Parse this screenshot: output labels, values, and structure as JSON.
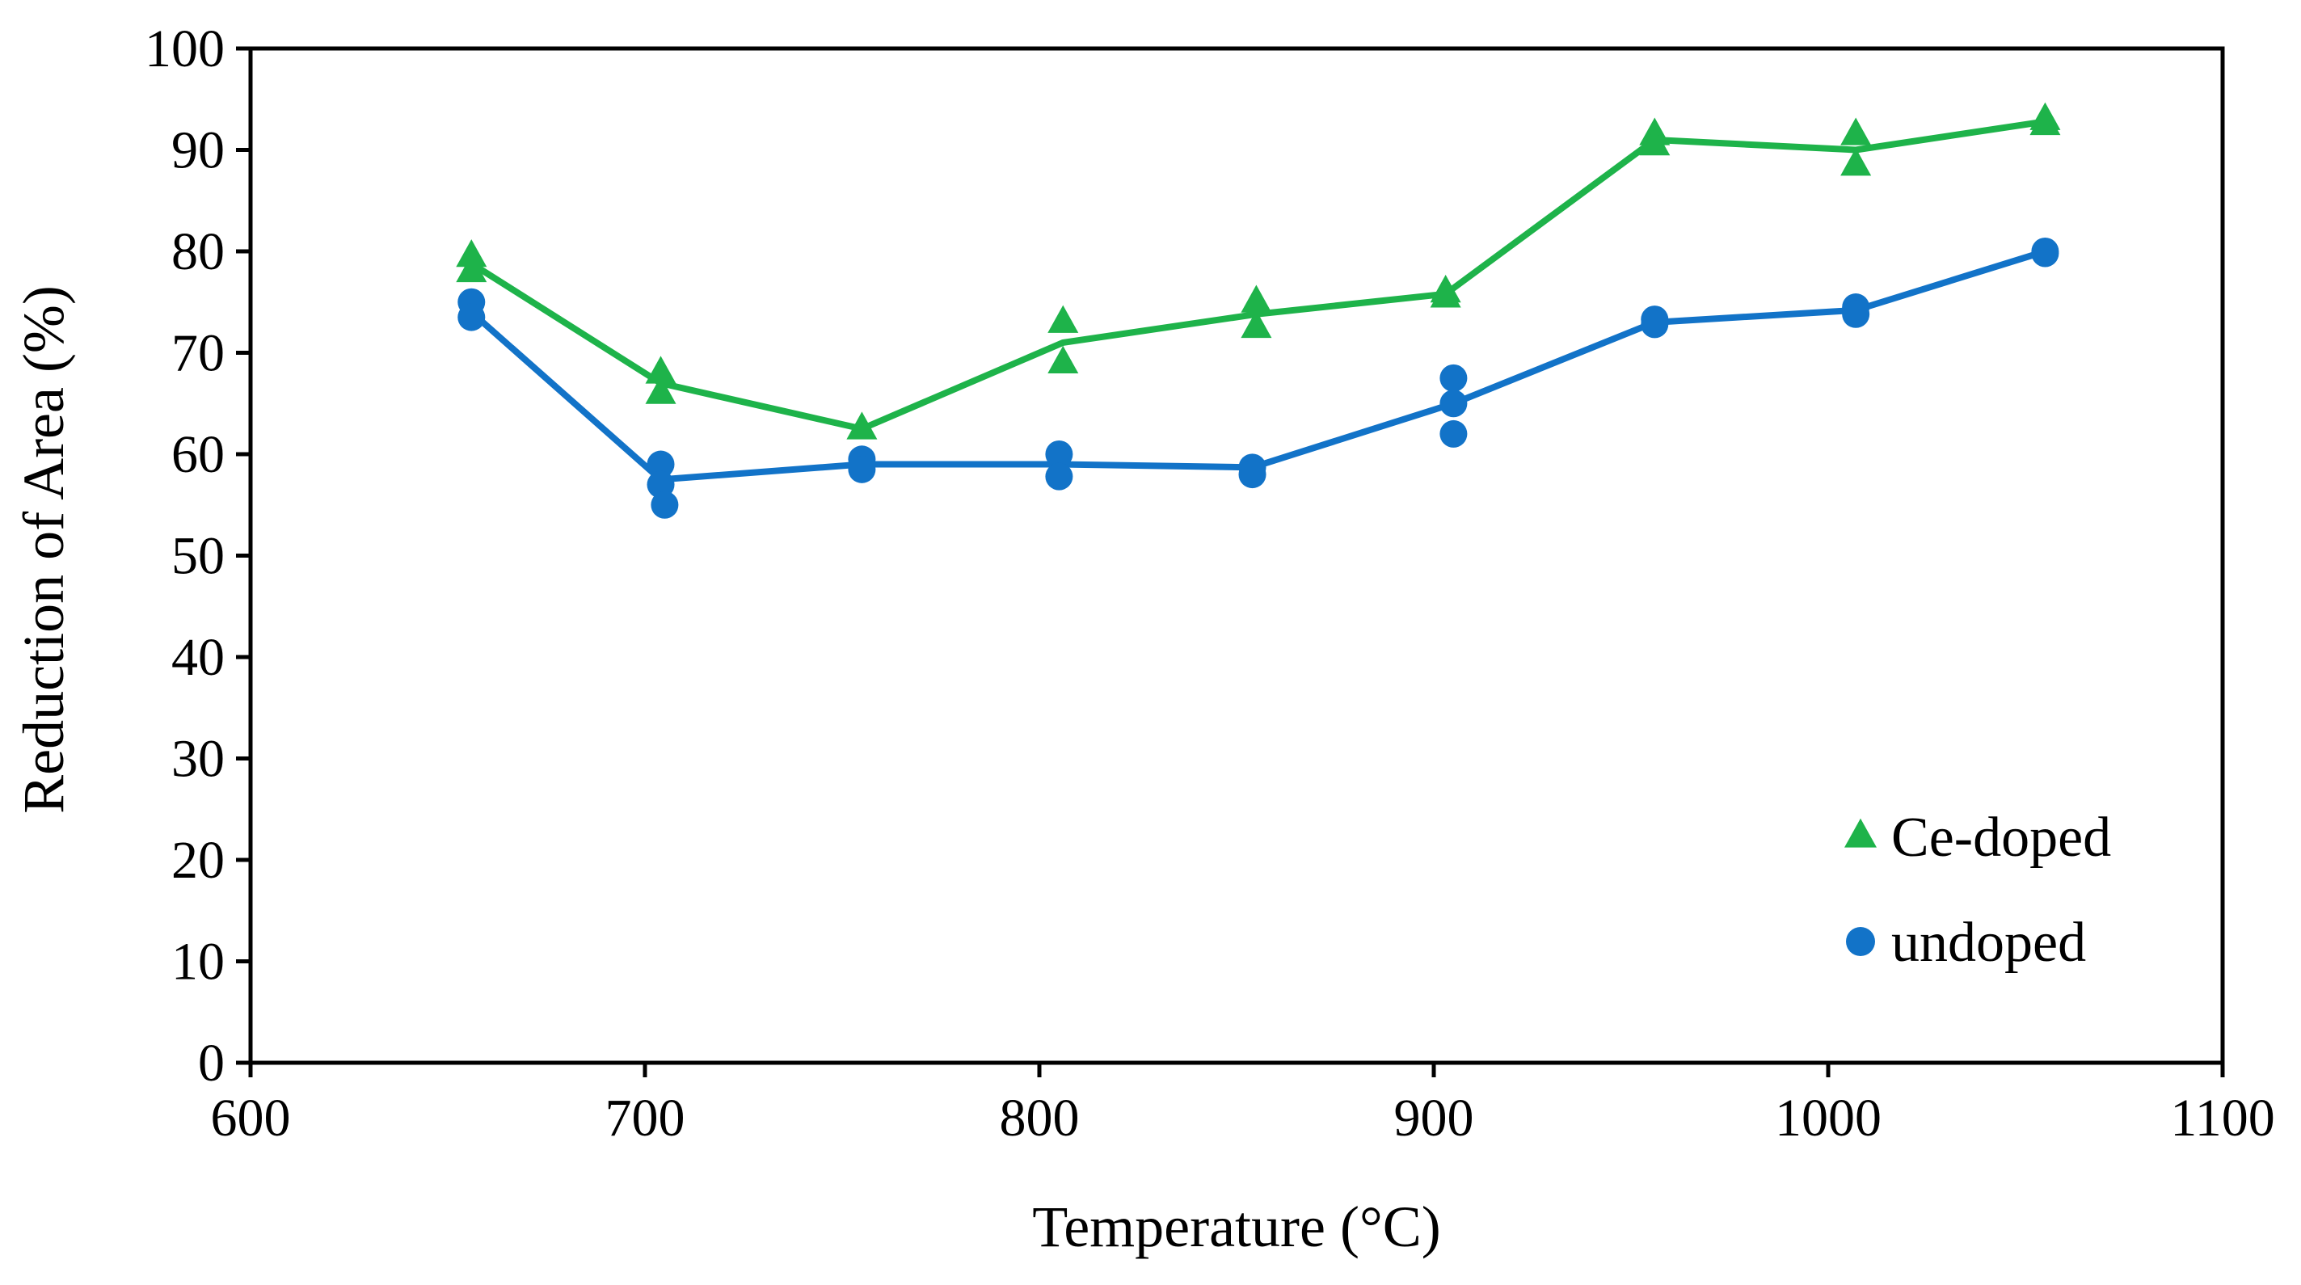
{
  "chart_data": {
    "type": "scatter",
    "title": "",
    "xlabel": "Temperature (°C)",
    "ylabel": "Reduction of Area (%)",
    "xlim": [
      600,
      1100
    ],
    "ylim": [
      0,
      100
    ],
    "xticks": [
      600,
      700,
      800,
      900,
      1000,
      1100
    ],
    "yticks": [
      0,
      10,
      20,
      30,
      40,
      50,
      60,
      70,
      80,
      90,
      100
    ],
    "grid": false,
    "legend_position": "bottom-right",
    "series": [
      {
        "name": "Ce-doped",
        "marker": "triangle",
        "color": "#1EB34A",
        "points": [
          {
            "x": 656,
            "y": 79.5
          },
          {
            "x": 656,
            "y": 78.0
          },
          {
            "x": 704,
            "y": 68.0
          },
          {
            "x": 704,
            "y": 66.0
          },
          {
            "x": 755,
            "y": 62.5
          },
          {
            "x": 806,
            "y": 73.0
          },
          {
            "x": 806,
            "y": 69.0
          },
          {
            "x": 855,
            "y": 75.0
          },
          {
            "x": 855,
            "y": 72.5
          },
          {
            "x": 903,
            "y": 76.0
          },
          {
            "x": 903,
            "y": 75.5
          },
          {
            "x": 956,
            "y": 91.5
          },
          {
            "x": 956,
            "y": 90.5
          },
          {
            "x": 1007,
            "y": 91.5
          },
          {
            "x": 1007,
            "y": 88.5
          },
          {
            "x": 1055,
            "y": 93.0
          },
          {
            "x": 1055,
            "y": 92.5
          }
        ],
        "line": [
          {
            "x": 656,
            "y": 78.8
          },
          {
            "x": 704,
            "y": 67.0
          },
          {
            "x": 755,
            "y": 62.5
          },
          {
            "x": 806,
            "y": 71.0
          },
          {
            "x": 855,
            "y": 73.8
          },
          {
            "x": 903,
            "y": 75.8
          },
          {
            "x": 956,
            "y": 91.0
          },
          {
            "x": 1007,
            "y": 90.0
          },
          {
            "x": 1055,
            "y": 92.8
          }
        ]
      },
      {
        "name": "undoped",
        "marker": "circle",
        "color": "#1273C8",
        "points": [
          {
            "x": 656,
            "y": 75.0
          },
          {
            "x": 656,
            "y": 73.5
          },
          {
            "x": 704,
            "y": 59.0
          },
          {
            "x": 704,
            "y": 57.0
          },
          {
            "x": 705,
            "y": 55.0
          },
          {
            "x": 755,
            "y": 59.5
          },
          {
            "x": 755,
            "y": 58.5
          },
          {
            "x": 805,
            "y": 60.0
          },
          {
            "x": 805,
            "y": 57.8
          },
          {
            "x": 854,
            "y": 58.7
          },
          {
            "x": 854,
            "y": 58.0
          },
          {
            "x": 905,
            "y": 67.5
          },
          {
            "x": 905,
            "y": 65.0
          },
          {
            "x": 905,
            "y": 62.0
          },
          {
            "x": 956,
            "y": 73.3
          },
          {
            "x": 956,
            "y": 72.8
          },
          {
            "x": 1007,
            "y": 74.5
          },
          {
            "x": 1007,
            "y": 73.8
          },
          {
            "x": 1055,
            "y": 80.0
          },
          {
            "x": 1055,
            "y": 79.8
          }
        ],
        "line": [
          {
            "x": 656,
            "y": 74.0
          },
          {
            "x": 704,
            "y": 57.5
          },
          {
            "x": 755,
            "y": 59.0
          },
          {
            "x": 805,
            "y": 59.0
          },
          {
            "x": 854,
            "y": 58.7
          },
          {
            "x": 905,
            "y": 65.0
          },
          {
            "x": 956,
            "y": 73.0
          },
          {
            "x": 1007,
            "y": 74.2
          },
          {
            "x": 1055,
            "y": 80.0
          }
        ]
      }
    ]
  }
}
